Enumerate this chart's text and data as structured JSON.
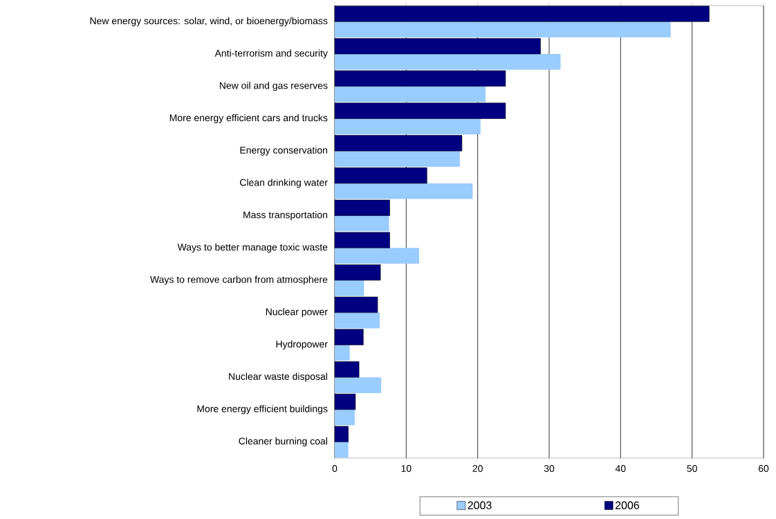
{
  "chart_data": {
    "type": "bar",
    "orientation": "horizontal",
    "categories": [
      "New energy sources: solar, wind, or bioenergy/biomass",
      "Anti-terrorism and security",
      "New oil and gas reserves",
      "More energy efficient cars and trucks",
      "Energy conservation",
      "Clean drinking water",
      "Mass transportation",
      "Ways to better manage toxic waste",
      "Ways to remove carbon from atmosphere",
      "Nuclear power",
      "Hydropower",
      "Nuclear waste disposal",
      "More energy efficient buildings",
      "Cleaner burning coal"
    ],
    "series": [
      {
        "name": "2003",
        "color": "#99ccff",
        "values": [
          47.0,
          31.6,
          21.1,
          20.4,
          17.5,
          19.3,
          7.6,
          11.8,
          4.1,
          6.3,
          2.1,
          6.5,
          2.8,
          1.9
        ]
      },
      {
        "name": "2006",
        "color": "#000080",
        "values": [
          52.4,
          28.8,
          23.9,
          23.9,
          17.8,
          12.9,
          7.7,
          7.7,
          6.4,
          6.0,
          4.0,
          3.4,
          2.9,
          1.9
        ]
      }
    ],
    "xlim": [
      0,
      60
    ],
    "xticks": [
      0,
      10,
      20,
      30,
      40,
      50,
      60
    ],
    "grid": "x",
    "legend": "bottom"
  }
}
